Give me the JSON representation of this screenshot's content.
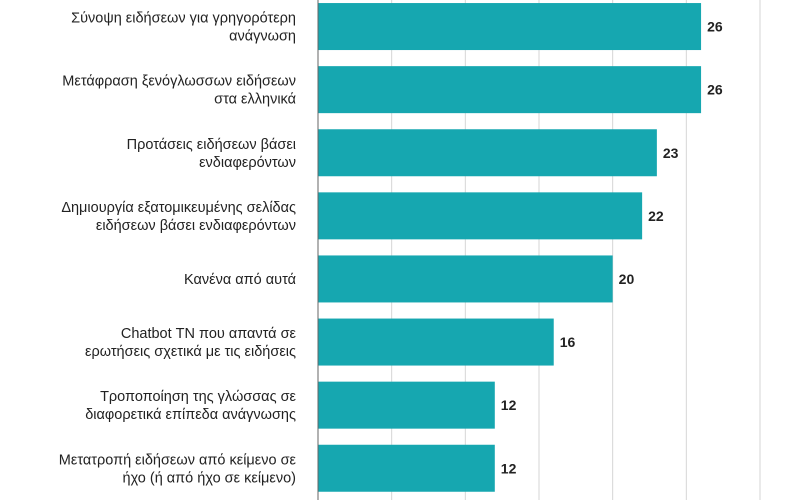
{
  "chart_data": {
    "type": "bar",
    "orientation": "horizontal",
    "categories": [
      [
        "Σύνοψη ειδήσεων για γρηγορότερη",
        "ανάγνωση"
      ],
      [
        "Μετάφραση ξενόγλωσσων ειδήσεων",
        "στα ελληνικά"
      ],
      [
        "Προτάσεις ειδήσεων βάσει",
        "ενδιαφερόντων"
      ],
      [
        "Δημιουργία εξατομικευμένης σελίδας",
        "ειδήσεων βάσει ενδιαφερόντων"
      ],
      [
        "Κανένα από αυτά"
      ],
      [
        "Chatbot ΤΝ που απαντά σε",
        "ερωτήσεις σχετικά με τις ειδήσεις"
      ],
      [
        "Τροποποίηση της γλώσσας σε",
        "διαφορετικά επίπεδα ανάγνωσης"
      ],
      [
        "Μετατροπή ειδήσεων από κείμενο σε",
        "ήχο (ή από ήχο σε κείμενο)"
      ]
    ],
    "values": [
      26,
      26,
      23,
      22,
      20,
      16,
      12,
      12
    ],
    "xlim": [
      0,
      30
    ],
    "grid": true,
    "colors": {
      "bar": "#16a7b0",
      "grid": "#d6d6d6",
      "axis": "#666666",
      "text": "#222222"
    }
  }
}
